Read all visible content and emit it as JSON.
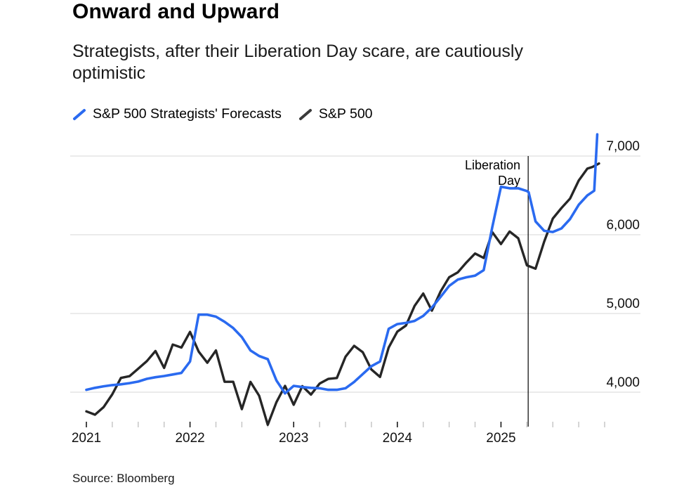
{
  "header": {
    "title": "Onward and Upward",
    "subtitle_line1": "Strategists, after their Liberation Day scare, are cautiously",
    "subtitle_line2": "optimistic"
  },
  "legend": [
    {
      "label": "S&P 500 Strategists' Forecasts",
      "color": "#2a6af0"
    },
    {
      "label": "S&P 500",
      "color": "#3a3a3a"
    }
  ],
  "source": "Source: Bloomberg",
  "chart_data": {
    "type": "line",
    "title": "Onward and Upward",
    "x_unit": "months since Dec 2020 (month-end values)",
    "x_axis": {
      "tick_labels": [
        "2021",
        "2022",
        "2023",
        "2024",
        "2025"
      ],
      "major_tick_months": [
        0,
        12,
        24,
        36,
        48
      ],
      "minor_tick_interval_months": 3,
      "range_months": [
        0,
        60
      ]
    },
    "y_axis": {
      "ticks": [
        {
          "value": 4000,
          "label": "4,000"
        },
        {
          "value": 5000,
          "label": "5,000"
        },
        {
          "value": 6000,
          "label": "6,000"
        },
        {
          "value": 7000,
          "label": "7,000"
        }
      ],
      "display_range": [
        3530,
        7290
      ],
      "grid": true,
      "label_side": "right"
    },
    "annotation": {
      "line1": "Liberation",
      "line2": "Day",
      "month_offset": 51.15,
      "date": "April 2025"
    },
    "series": [
      {
        "name": "S&P 500",
        "color": "#262626",
        "stroke_width": 3.4,
        "points": [
          [
            0,
            3756
          ],
          [
            1,
            3714
          ],
          [
            2,
            3811
          ],
          [
            3,
            3973
          ],
          [
            4,
            4181
          ],
          [
            5,
            4204
          ],
          [
            6,
            4298
          ],
          [
            7,
            4395
          ],
          [
            8,
            4523
          ],
          [
            9,
            4308
          ],
          [
            10,
            4605
          ],
          [
            11,
            4567
          ],
          [
            12,
            4766
          ],
          [
            13,
            4516
          ],
          [
            14,
            4374
          ],
          [
            15,
            4530
          ],
          [
            16,
            4132
          ],
          [
            17,
            4132
          ],
          [
            18,
            3785
          ],
          [
            19,
            4130
          ],
          [
            20,
            3955
          ],
          [
            21,
            3586
          ],
          [
            22,
            3872
          ],
          [
            23,
            4080
          ],
          [
            24,
            3840
          ],
          [
            25,
            4077
          ],
          [
            26,
            3970
          ],
          [
            27,
            4109
          ],
          [
            28,
            4169
          ],
          [
            29,
            4180
          ],
          [
            30,
            4450
          ],
          [
            31,
            4589
          ],
          [
            32,
            4508
          ],
          [
            33,
            4288
          ],
          [
            34,
            4194
          ],
          [
            35,
            4568
          ],
          [
            36,
            4770
          ],
          [
            37,
            4846
          ],
          [
            38,
            5096
          ],
          [
            39,
            5254
          ],
          [
            40,
            5036
          ],
          [
            41,
            5278
          ],
          [
            42,
            5460
          ],
          [
            43,
            5522
          ],
          [
            44,
            5648
          ],
          [
            45,
            5762
          ],
          [
            46,
            5705
          ],
          [
            47,
            6032
          ],
          [
            48,
            5882
          ],
          [
            49,
            6041
          ],
          [
            50,
            5955
          ],
          [
            51,
            5612
          ],
          [
            52,
            5569
          ],
          [
            53,
            5912
          ],
          [
            54,
            6205
          ],
          [
            55,
            6339
          ],
          [
            56,
            6460
          ],
          [
            57,
            6688
          ],
          [
            58,
            6840
          ],
          [
            58.6,
            6862
          ],
          [
            59.35,
            6905
          ]
        ]
      },
      {
        "name": "S&P 500 Strategists' Forecasts",
        "color": "#2a6af0",
        "stroke_width": 3.6,
        "points": [
          [
            0,
            4030
          ],
          [
            1,
            4055
          ],
          [
            2,
            4075
          ],
          [
            3,
            4090
          ],
          [
            4,
            4100
          ],
          [
            5,
            4115
          ],
          [
            6,
            4135
          ],
          [
            7,
            4170
          ],
          [
            8,
            4190
          ],
          [
            9,
            4205
          ],
          [
            10,
            4225
          ],
          [
            11,
            4245
          ],
          [
            12,
            4390
          ],
          [
            13,
            4985
          ],
          [
            14,
            4985
          ],
          [
            15,
            4960
          ],
          [
            16,
            4895
          ],
          [
            17,
            4815
          ],
          [
            18,
            4700
          ],
          [
            19,
            4530
          ],
          [
            20,
            4460
          ],
          [
            21,
            4420
          ],
          [
            22,
            4150
          ],
          [
            23,
            3985
          ],
          [
            24,
            4080
          ],
          [
            25,
            4065
          ],
          [
            26,
            4055
          ],
          [
            27,
            4050
          ],
          [
            28,
            4030
          ],
          [
            29,
            4030
          ],
          [
            30,
            4050
          ],
          [
            31,
            4130
          ],
          [
            32,
            4230
          ],
          [
            33,
            4330
          ],
          [
            34,
            4390
          ],
          [
            35,
            4805
          ],
          [
            36,
            4865
          ],
          [
            37,
            4880
          ],
          [
            38,
            4905
          ],
          [
            39,
            4970
          ],
          [
            40,
            5075
          ],
          [
            41,
            5210
          ],
          [
            42,
            5350
          ],
          [
            43,
            5430
          ],
          [
            44,
            5460
          ],
          [
            45,
            5480
          ],
          [
            46,
            5550
          ],
          [
            47,
            6100
          ],
          [
            48,
            6610
          ],
          [
            49,
            6590
          ],
          [
            50,
            6590
          ],
          [
            51,
            6555
          ],
          [
            51.2,
            6540
          ],
          [
            52,
            6170
          ],
          [
            53,
            6050
          ],
          [
            54,
            6035
          ],
          [
            55,
            6080
          ],
          [
            56,
            6200
          ],
          [
            57,
            6380
          ],
          [
            58,
            6500
          ],
          [
            58.8,
            6560
          ],
          [
            59.15,
            7275
          ]
        ]
      }
    ]
  }
}
